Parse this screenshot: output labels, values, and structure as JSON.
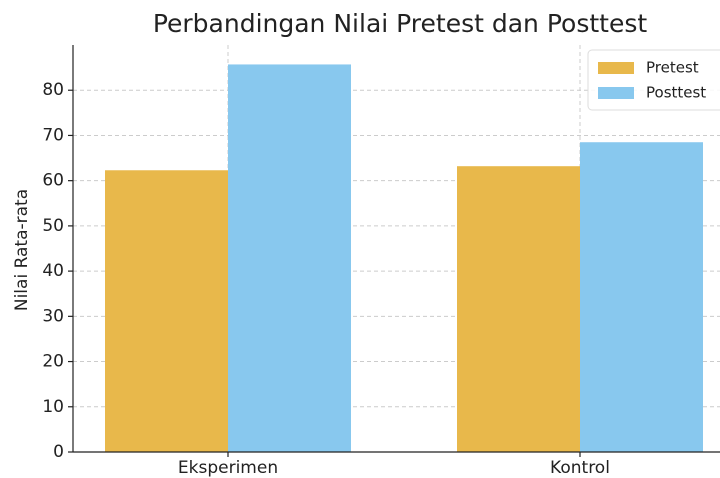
{
  "chart_data": {
    "type": "bar",
    "title": "Perbandingan Nilai Pretest dan Posttest",
    "ylabel": "Nilai Rata-rata",
    "categories": [
      "Eksperimen",
      "Kontrol"
    ],
    "series": [
      {
        "name": "Pretest",
        "color": "#e8b84b",
        "values": [
          62.3,
          63.2
        ]
      },
      {
        "name": "Posttest",
        "color": "#88c8ee",
        "values": [
          85.7,
          68.5
        ]
      }
    ],
    "ylim": [
      0,
      90
    ],
    "yticks": [
      0,
      10,
      20,
      30,
      40,
      50,
      60,
      70,
      80
    ],
    "grid": true,
    "legend": "upper right"
  }
}
